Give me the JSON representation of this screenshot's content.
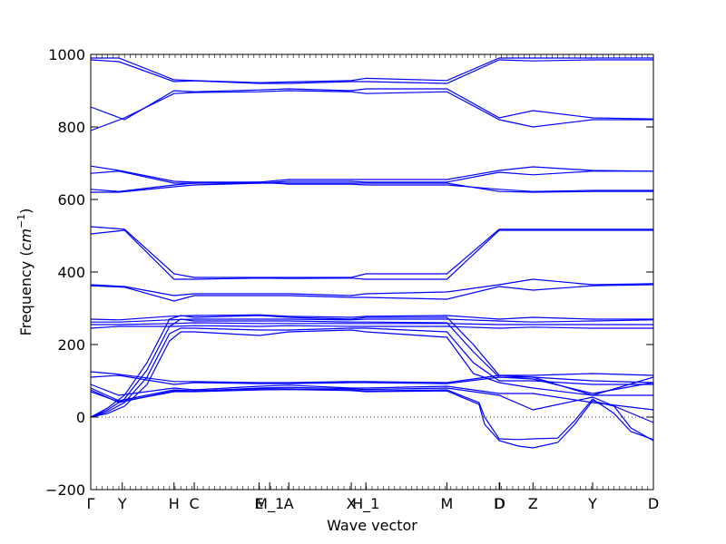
{
  "chart_data": {
    "type": "line",
    "title": "",
    "xlabel": "Wave vector",
    "ylabel": "Frequency (",
    "ylabel_unit": "cm",
    "ylabel_exp": "−1",
    "ylabel_close": ")",
    "xlim": [
      0,
      1
    ],
    "ylim": [
      -200,
      1000
    ],
    "yticks": [
      "−200",
      "0",
      "200",
      "400",
      "600",
      "800",
      "1000"
    ],
    "ytick_values": [
      -200,
      0,
      200,
      400,
      600,
      800,
      1000
    ],
    "xticks": [
      {
        "label": "Γ",
        "x": 0.0
      },
      {
        "label": "Y",
        "x": 0.056
      },
      {
        "label": "H",
        "x": 0.148
      },
      {
        "label": "C",
        "x": 0.184
      },
      {
        "label": "E",
        "x": 0.299
      },
      {
        "label": "M_1",
        "x": 0.318
      },
      {
        "label": "A",
        "x": 0.352
      },
      {
        "label": "X",
        "x": 0.463
      },
      {
        "label": "H_1",
        "x": 0.489
      },
      {
        "label": "M",
        "x": 0.633
      },
      {
        "label": "D",
        "x": 0.726
      },
      {
        "label": "D",
        "x": 0.727
      },
      {
        "label": "Z",
        "x": 0.786
      },
      {
        "label": "Y",
        "x": 0.892
      },
      {
        "label": "D",
        "x": 1.0
      }
    ],
    "zero_line": true,
    "line_color": "#0000ff",
    "series": [
      {
        "x": [
          0,
          0.05,
          0.148,
          0.184,
          0.3,
          0.352,
          0.463,
          0.489,
          0.633,
          0.726,
          0.786,
          0.892,
          1.0
        ],
        "values": [
          990,
          990,
          930,
          928,
          922,
          924,
          928,
          934,
          928,
          990,
          990,
          990,
          990
        ]
      },
      {
        "x": [
          0,
          0.05,
          0.148,
          0.184,
          0.3,
          0.352,
          0.463,
          0.489,
          0.633,
          0.726,
          0.786,
          0.892,
          1.0
        ],
        "values": [
          985,
          980,
          925,
          927,
          920,
          920,
          925,
          925,
          920,
          985,
          982,
          985,
          985
        ]
      },
      {
        "x": [
          0,
          0.06,
          0.148,
          0.184,
          0.3,
          0.352,
          0.463,
          0.489,
          0.633,
          0.726,
          0.786,
          0.892,
          1.0
        ],
        "values": [
          855,
          820,
          900,
          897,
          902,
          905,
          900,
          905,
          905,
          825,
          845,
          825,
          822
        ]
      },
      {
        "x": [
          0,
          0.06,
          0.148,
          0.184,
          0.3,
          0.352,
          0.463,
          0.489,
          0.633,
          0.726,
          0.786,
          0.892,
          1.0
        ],
        "values": [
          790,
          825,
          892,
          895,
          897,
          900,
          897,
          892,
          897,
          820,
          800,
          820,
          820
        ]
      },
      {
        "x": [
          0,
          0.05,
          0.148,
          0.184,
          0.3,
          0.352,
          0.463,
          0.489,
          0.633,
          0.726,
          0.786,
          0.892,
          1.0
        ],
        "values": [
          692,
          680,
          650,
          648,
          648,
          655,
          655,
          655,
          655,
          680,
          690,
          680,
          678
        ]
      },
      {
        "x": [
          0,
          0.05,
          0.148,
          0.184,
          0.3,
          0.352,
          0.463,
          0.489,
          0.633,
          0.726,
          0.786,
          0.892,
          1.0
        ],
        "values": [
          672,
          678,
          645,
          645,
          645,
          650,
          650,
          648,
          648,
          675,
          668,
          678,
          678
        ]
      },
      {
        "x": [
          0,
          0.05,
          0.148,
          0.184,
          0.3,
          0.352,
          0.463,
          0.489,
          0.633,
          0.726,
          0.786,
          0.892,
          1.0
        ],
        "values": [
          628,
          622,
          640,
          645,
          648,
          642,
          642,
          640,
          640,
          628,
          622,
          625,
          625
        ]
      },
      {
        "x": [
          0,
          0.05,
          0.148,
          0.184,
          0.3,
          0.352,
          0.463,
          0.489,
          0.633,
          0.726,
          0.786,
          0.892,
          1.0
        ],
        "values": [
          620,
          620,
          635,
          640,
          645,
          645,
          645,
          645,
          645,
          622,
          620,
          622,
          622
        ]
      },
      {
        "x": [
          0,
          0.06,
          0.148,
          0.184,
          0.3,
          0.352,
          0.463,
          0.489,
          0.633,
          0.726,
          0.786,
          0.892,
          1.0
        ],
        "values": [
          525,
          518,
          395,
          385,
          385,
          385,
          385,
          395,
          395,
          518,
          518,
          518,
          518
        ]
      },
      {
        "x": [
          0,
          0.06,
          0.148,
          0.184,
          0.3,
          0.352,
          0.463,
          0.489,
          0.633,
          0.726,
          0.786,
          0.892,
          1.0
        ],
        "values": [
          505,
          515,
          380,
          380,
          383,
          382,
          383,
          380,
          380,
          515,
          515,
          515,
          515
        ]
      },
      {
        "x": [
          0,
          0.06,
          0.148,
          0.184,
          0.3,
          0.352,
          0.463,
          0.489,
          0.633,
          0.726,
          0.786,
          0.892,
          1.0
        ],
        "values": [
          365,
          360,
          335,
          340,
          340,
          340,
          335,
          340,
          345,
          365,
          380,
          365,
          368
        ]
      },
      {
        "x": [
          0,
          0.06,
          0.148,
          0.184,
          0.3,
          0.352,
          0.463,
          0.489,
          0.633,
          0.726,
          0.786,
          0.892,
          1.0
        ],
        "values": [
          362,
          358,
          320,
          335,
          335,
          335,
          330,
          330,
          325,
          360,
          350,
          362,
          365
        ]
      },
      {
        "x": [
          0,
          0.05,
          0.14,
          0.184,
          0.3,
          0.352,
          0.463,
          0.489,
          0.633,
          0.726,
          0.786,
          0.892,
          1.0
        ],
        "values": [
          270,
          268,
          278,
          280,
          282,
          278,
          275,
          278,
          280,
          270,
          275,
          270,
          270
        ]
      },
      {
        "x": [
          0,
          0.05,
          0.14,
          0.184,
          0.3,
          0.352,
          0.463,
          0.489,
          0.633,
          0.726,
          0.786,
          0.892,
          1.0
        ],
        "values": [
          262,
          262,
          268,
          270,
          270,
          270,
          268,
          270,
          270,
          265,
          262,
          265,
          268
        ]
      },
      {
        "x": [
          0,
          0.05,
          0.148,
          0.184,
          0.3,
          0.352,
          0.463,
          0.489,
          0.633,
          0.726,
          0.786,
          0.892,
          1.0
        ],
        "values": [
          255,
          255,
          258,
          260,
          258,
          258,
          258,
          258,
          258,
          255,
          255,
          255,
          255
        ]
      },
      {
        "x": [
          0,
          0.05,
          0.148,
          0.184,
          0.3,
          0.352,
          0.463,
          0.489,
          0.633,
          0.726,
          0.786,
          0.892,
          1.0
        ],
        "values": [
          245,
          250,
          250,
          252,
          250,
          252,
          250,
          250,
          250,
          245,
          248,
          245,
          245
        ]
      },
      {
        "x": [
          0,
          0.03,
          0.06,
          0.1,
          0.14,
          0.16,
          0.184,
          0.3,
          0.352,
          0.463,
          0.489,
          0.633,
          0.68,
          0.726,
          0.786,
          0.892,
          1.0
        ],
        "values": [
          0,
          25,
          60,
          150,
          270,
          280,
          275,
          280,
          275,
          270,
          275,
          275,
          200,
          115,
          115,
          120,
          115
        ]
      },
      {
        "x": [
          0,
          0.03,
          0.06,
          0.1,
          0.14,
          0.16,
          0.184,
          0.3,
          0.352,
          0.463,
          0.489,
          0.633,
          0.68,
          0.726,
          0.786,
          0.892,
          1.0
        ],
        "values": [
          0,
          20,
          50,
          130,
          250,
          270,
          265,
          265,
          265,
          262,
          262,
          260,
          180,
          110,
          110,
          100,
          95
        ]
      },
      {
        "x": [
          0,
          0.03,
          0.06,
          0.1,
          0.14,
          0.16,
          0.184,
          0.3,
          0.352,
          0.463,
          0.489,
          0.633,
          0.68,
          0.726,
          0.786,
          0.892,
          1.0
        ],
        "values": [
          0,
          15,
          40,
          110,
          230,
          245,
          245,
          240,
          240,
          245,
          245,
          235,
          150,
          100,
          100,
          90,
          90
        ]
      },
      {
        "x": [
          0,
          0.03,
          0.06,
          0.1,
          0.14,
          0.16,
          0.184,
          0.3,
          0.352,
          0.463,
          0.489,
          0.633,
          0.68,
          0.726,
          0.786,
          0.892,
          1.0
        ],
        "values": [
          0,
          10,
          30,
          90,
          210,
          235,
          235,
          225,
          235,
          240,
          235,
          220,
          120,
          95,
          80,
          60,
          60
        ]
      },
      {
        "x": [
          0,
          0.05,
          0.148,
          0.184,
          0.3,
          0.352,
          0.463,
          0.489,
          0.633,
          0.726,
          0.786,
          0.892,
          1.0
        ],
        "values": [
          125,
          118,
          98,
          98,
          95,
          95,
          98,
          98,
          95,
          115,
          110,
          60,
          110
        ]
      },
      {
        "x": [
          0,
          0.05,
          0.148,
          0.184,
          0.3,
          0.352,
          0.463,
          0.489,
          0.633,
          0.726,
          0.786,
          0.892,
          1.0
        ],
        "values": [
          110,
          115,
          90,
          95,
          92,
          92,
          95,
          95,
          92,
          110,
          105,
          65,
          95
        ]
      },
      {
        "x": [
          0,
          0.05,
          0.148,
          0.184,
          0.3,
          0.352,
          0.463,
          0.489,
          0.633,
          0.726,
          0.786,
          0.892,
          1.0
        ],
        "values": [
          90,
          60,
          80,
          75,
          85,
          88,
          80,
          80,
          85,
          65,
          65,
          40,
          20
        ]
      },
      {
        "x": [
          0,
          0.05,
          0.148,
          0.184,
          0.3,
          0.352,
          0.463,
          0.489,
          0.633,
          0.726,
          0.786,
          0.892,
          1.0
        ],
        "values": [
          80,
          45,
          75,
          72,
          80,
          82,
          78,
          76,
          80,
          60,
          20,
          55,
          -15
        ]
      },
      {
        "x": [
          0,
          0.05,
          0.148,
          0.184,
          0.3,
          0.352,
          0.463,
          0.489,
          0.633,
          0.69,
          0.7,
          0.726,
          0.76,
          0.786,
          0.83,
          0.86,
          0.892,
          0.93,
          0.96,
          1.0
        ],
        "values": [
          75,
          40,
          72,
          72,
          78,
          78,
          75,
          72,
          75,
          40,
          0,
          -60,
          -62,
          -60,
          -58,
          -10,
          50,
          10,
          -40,
          -62
        ]
      },
      {
        "x": [
          0,
          0.05,
          0.148,
          0.184,
          0.3,
          0.352,
          0.463,
          0.489,
          0.633,
          0.69,
          0.7,
          0.726,
          0.76,
          0.786,
          0.83,
          0.86,
          0.892,
          0.93,
          0.96,
          1.0
        ],
        "values": [
          70,
          42,
          70,
          70,
          75,
          76,
          73,
          70,
          72,
          35,
          -20,
          -65,
          -80,
          -85,
          -70,
          -20,
          45,
          30,
          -30,
          -65
        ]
      }
    ]
  }
}
